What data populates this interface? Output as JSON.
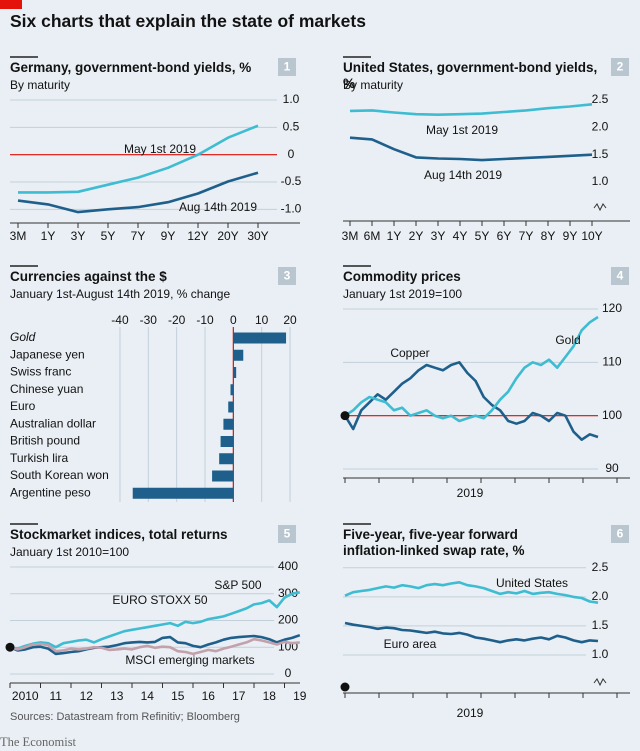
{
  "title": "Six charts that explain the state of markets",
  "source": "Sources: Datastream from Refinitiv; Bloomberg",
  "brand": "The Economist",
  "chart_data": [
    {
      "type": "line",
      "number": 1,
      "title": "Germany, government-bond yields, %",
      "subtitle": "By maturity",
      "categories": [
        "3M",
        "1Y",
        "3Y",
        "5Y",
        "7Y",
        "9Y",
        "12Y",
        "20Y",
        "30Y"
      ],
      "ylim": [
        -1.25,
        1
      ],
      "yticks": [
        {
          "value": 1,
          "label": "1.0"
        },
        0.5,
        0,
        -0.5,
        {
          "value": -1,
          "label": "-1.0"
        }
      ],
      "grid": true,
      "red_line": 0,
      "series": [
        {
          "name": "May 1st 2019",
          "color": "#3ebcd2",
          "values": [
            -0.69,
            -0.69,
            -0.68,
            -0.55,
            -0.42,
            -0.24,
            0,
            0.31,
            0.53
          ]
        },
        {
          "name": "Aug 14th 2019",
          "color": "#1f5f8b",
          "values": [
            -0.84,
            -0.91,
            -1.05,
            -1.0,
            -0.96,
            -0.87,
            -0.71,
            -0.49,
            -0.33
          ]
        }
      ]
    },
    {
      "type": "line",
      "number": 2,
      "title": "United States, government-bond yields, %",
      "subtitle": "By maturity",
      "categories": [
        "3M",
        "6M",
        "1Y",
        "2Y",
        "3Y",
        "4Y",
        "5Y",
        "6Y",
        "7Y",
        "8Y",
        "9Y",
        "10Y"
      ],
      "ylim": [
        0.3,
        2.6
      ],
      "yticks": [
        2.5,
        {
          "value": 2,
          "label": "2.0"
        },
        1.5,
        {
          "value": 1,
          "label": "1.0"
        }
      ],
      "grid": false,
      "axis_break": true,
      "series": [
        {
          "name": "May 1st 2019",
          "color": "#3ebcd2",
          "values": [
            2.3,
            2.31,
            2.27,
            2.24,
            2.23,
            2.24,
            2.25,
            2.28,
            2.31,
            2.35,
            2.38,
            2.42
          ]
        },
        {
          "name": "Aug 14th 2019",
          "color": "#1f5f8b",
          "values": [
            1.81,
            1.78,
            1.6,
            1.45,
            1.43,
            1.42,
            1.4,
            1.42,
            1.44,
            1.46,
            1.48,
            1.5
          ]
        }
      ]
    },
    {
      "type": "bar",
      "orientation": "horizontal",
      "number": 3,
      "title": "Currencies against the $",
      "subtitle": "January 1st-August 14th 2019, % change",
      "categories": [
        "Gold",
        "Japanese yen",
        "Swiss franc",
        "Chinese yuan",
        "Euro",
        "Australian dollar",
        "British pound",
        "Turkish lira",
        "South Korean won",
        "Argentine peso"
      ],
      "values": [
        18.6,
        3.5,
        1,
        -1,
        -1.8,
        -3.5,
        -4.5,
        -5,
        -7.5,
        -35.5
      ],
      "color": "#1f5f8b",
      "xlim": [
        -42,
        22
      ],
      "xticks": [
        -40,
        -30,
        -20,
        -10,
        0,
        10,
        20
      ],
      "grid": true,
      "red_line": 0
    },
    {
      "type": "line",
      "number": 4,
      "title": "Commodity prices",
      "subtitle": "January 1st 2019=100",
      "xlabel": "2019",
      "ylim": [
        88.5,
        121.5
      ],
      "yticks": [
        120,
        110,
        100,
        90
      ],
      "grid": true,
      "red_line": 100,
      "series": [
        {
          "name": "Copper",
          "color": "#1f5f8b",
          "values": [
            100,
            97.5,
            101,
            102.5,
            104,
            103,
            104.5,
            106,
            107,
            108.5,
            109.5,
            109,
            108.5,
            109.5,
            110,
            108,
            106.5,
            103.5,
            102,
            101,
            99,
            98.5,
            99,
            100.5,
            100,
            99,
            100.5,
            100,
            97,
            95.5,
            96.5,
            96
          ]
        },
        {
          "name": "Gold",
          "color": "#3ebcd2",
          "values": [
            100,
            101,
            102.5,
            103.5,
            103,
            102.5,
            101,
            101.5,
            100,
            100.5,
            101,
            100,
            99.5,
            100,
            99,
            99.5,
            100,
            99.5,
            101,
            103,
            104.5,
            107,
            109,
            110,
            109.5,
            110.5,
            109,
            111,
            113,
            116,
            117.5,
            118.5
          ]
        }
      ]
    },
    {
      "type": "line",
      "number": 5,
      "title": "Stockmarket indices, total returns",
      "subtitle": "January 1st 2010=100",
      "x": [
        2010,
        2010.25,
        2010.5,
        2010.75,
        2011,
        2011.25,
        2011.5,
        2011.75,
        2012,
        2012.25,
        2012.5,
        2012.75,
        2013,
        2013.25,
        2013.5,
        2013.75,
        2014,
        2014.25,
        2014.5,
        2014.75,
        2015,
        2015.25,
        2015.5,
        2015.75,
        2016,
        2016.25,
        2016.5,
        2016.75,
        2017,
        2017.25,
        2017.5,
        2017.75,
        2018,
        2018.25,
        2018.5,
        2018.75,
        2019,
        2019.25,
        2019.5
      ],
      "xlim": [
        2010,
        2019.6
      ],
      "xticks": [
        2010,
        {
          "value": 2011,
          "label": "11"
        },
        {
          "value": 2012,
          "label": "12"
        },
        {
          "value": 2013,
          "label": "13"
        },
        {
          "value": 2014,
          "label": "14"
        },
        {
          "value": 2015,
          "label": "15"
        },
        {
          "value": 2016,
          "label": "16"
        },
        {
          "value": 2017,
          "label": "17"
        },
        {
          "value": 2018,
          "label": "18"
        },
        {
          "value": 2019,
          "label": "19"
        }
      ],
      "ylim": [
        -30,
        420
      ],
      "yticks": [
        400,
        300,
        200,
        100,
        0
      ],
      "grid": true,
      "series": [
        {
          "name": "S&P 500",
          "color": "#3ebcd2",
          "values": [
            100,
            95,
            105,
            113,
            118,
            115,
            100,
            115,
            120,
            125,
            128,
            118,
            130,
            140,
            150,
            160,
            165,
            170,
            175,
            180,
            185,
            190,
            180,
            195,
            190,
            195,
            205,
            210,
            215,
            225,
            235,
            245,
            260,
            265,
            275,
            250,
            285,
            300,
            305
          ]
        },
        {
          "name": "EURO STOXX 50",
          "color": "#1f5f8b",
          "values": [
            100,
            88,
            92,
            100,
            102,
            95,
            75,
            78,
            82,
            85,
            92,
            98,
            100,
            102,
            108,
            115,
            118,
            120,
            118,
            120,
            135,
            138,
            118,
            115,
            105,
            100,
            110,
            118,
            128,
            135,
            138,
            140,
            142,
            138,
            130,
            118,
            128,
            135,
            145
          ]
        },
        {
          "name": "MSCI emerging markets",
          "color": "#c3a1ab",
          "values": [
            100,
            92,
            100,
            110,
            112,
            108,
            85,
            88,
            95,
            92,
            95,
            100,
            98,
            90,
            92,
            95,
            92,
            100,
            105,
            98,
            102,
            100,
            85,
            82,
            75,
            82,
            90,
            85,
            95,
            102,
            110,
            118,
            130,
            125,
            118,
            110,
            120,
            115,
            118
          ]
        }
      ]
    },
    {
      "type": "line",
      "number": 6,
      "title": "Five-year, five-year forward inflation-linked swap rate, %",
      "xlabel": "2019",
      "ylim": [
        0.35,
        2.6
      ],
      "yticks": [
        2.5,
        {
          "value": 2,
          "label": "2.0"
        },
        1.5,
        {
          "value": 1,
          "label": "1.0"
        }
      ],
      "grid": true,
      "axis_break": true,
      "series": [
        {
          "name": "United States",
          "color": "#3ebcd2",
          "values": [
            2.02,
            2.08,
            2.1,
            2.12,
            2.15,
            2.18,
            2.16,
            2.2,
            2.18,
            2.15,
            2.2,
            2.22,
            2.2,
            2.23,
            2.25,
            2.2,
            2.18,
            2.15,
            2.1,
            2.05,
            2.08,
            2.06,
            2.1,
            2.05,
            2.07,
            2.08,
            2.05,
            2.03,
            2.0,
            1.98,
            1.92,
            1.9
          ]
        },
        {
          "name": "Euro area",
          "color": "#1f5f8b",
          "values": [
            1.55,
            1.52,
            1.5,
            1.48,
            1.45,
            1.47,
            1.46,
            1.43,
            1.42,
            1.4,
            1.38,
            1.4,
            1.37,
            1.36,
            1.38,
            1.35,
            1.3,
            1.28,
            1.25,
            1.22,
            1.25,
            1.27,
            1.25,
            1.28,
            1.3,
            1.27,
            1.33,
            1.3,
            1.25,
            1.22,
            1.25,
            1.24
          ]
        }
      ]
    }
  ]
}
